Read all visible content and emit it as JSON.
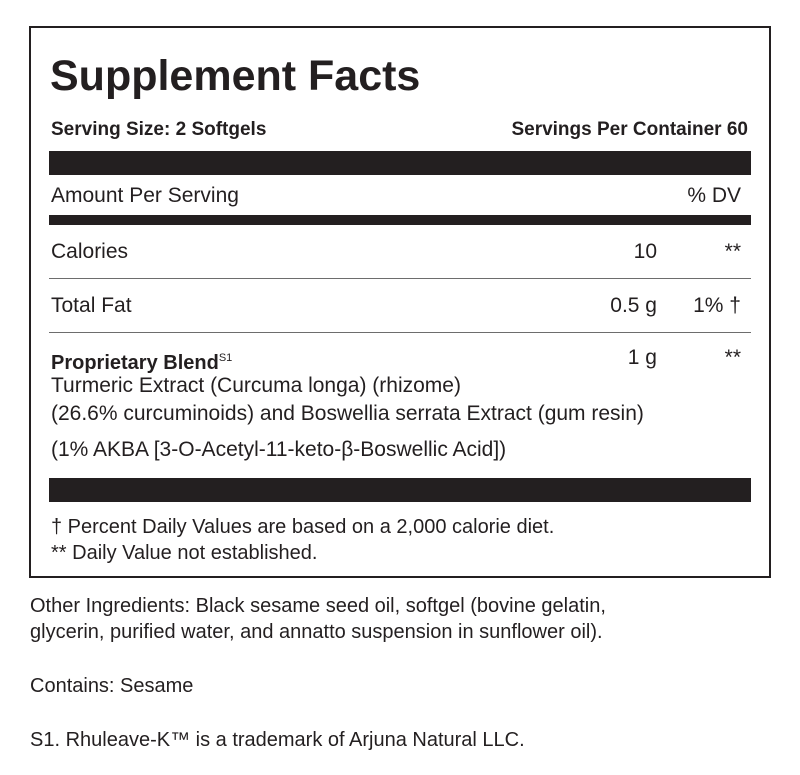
{
  "title": "Supplement Facts",
  "serving_size": "Serving Size: 2 Softgels",
  "servings_per_container": "Servings Per Container 60",
  "header": {
    "amount": "Amount Per Serving",
    "dv": "% DV"
  },
  "rows": [
    {
      "name": "Calories",
      "amount": "10",
      "dv": "**"
    },
    {
      "name": "Total Fat",
      "amount": "0.5 g",
      "dv": "1% †"
    }
  ],
  "blend": {
    "name": "Proprietary Blend",
    "superscript": "S1",
    "amount": "1 g",
    "dv": "**",
    "lines": [
      "Turmeric Extract (Curcuma longa) (rhizome)",
      "(26.6% curcuminoids) and Boswellia serrata Extract (gum resin)",
      "(1% AKBA [3-O-Acetyl-11-keto-β-Boswellic Acid])"
    ]
  },
  "footnotes": [
    "† Percent Daily Values are based on a 2,000 calorie diet.",
    "** Daily Value not established."
  ],
  "other_ingredients": [
    "Other Ingredients: Black sesame seed oil, softgel (bovine gelatin,",
    "glycerin, purified water, and annatto suspension in sunflower oil)."
  ],
  "contains": "Contains: Sesame",
  "trademark": "S1. Rhuleave-K™ is a trademark of Arjuna Natural LLC."
}
